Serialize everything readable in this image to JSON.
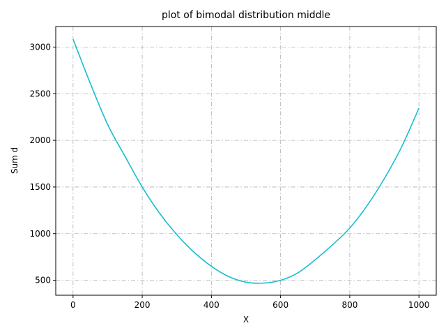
{
  "chart_data": {
    "type": "line",
    "title": "plot of bimodal distribution middle",
    "xlabel": "X",
    "ylabel": "Sum d",
    "xlim": [
      -50,
      1050
    ],
    "ylim": [
      340,
      3220
    ],
    "xticks": [
      0,
      200,
      400,
      600,
      800,
      1000
    ],
    "yticks": [
      500,
      1000,
      1500,
      2000,
      2500,
      3000
    ],
    "xtick_labels": [
      "0",
      "200",
      "400",
      "600",
      "800",
      "1000"
    ],
    "ytick_labels": [
      "500",
      "1000",
      "1500",
      "2000",
      "2500",
      "3000"
    ],
    "grid": true,
    "grid_style": "dashdot",
    "series": [
      {
        "color": "#17becf",
        "x": [
          0,
          50,
          100,
          150,
          200,
          250,
          300,
          350,
          400,
          450,
          500,
          550,
          600,
          650,
          700,
          750,
          800,
          850,
          900,
          950,
          1000
        ],
        "y": [
          3085,
          2610,
          2170,
          1830,
          1500,
          1220,
          990,
          800,
          650,
          540,
          480,
          470,
          500,
          580,
          720,
          880,
          1060,
          1300,
          1590,
          1930,
          2345
        ]
      }
    ]
  }
}
